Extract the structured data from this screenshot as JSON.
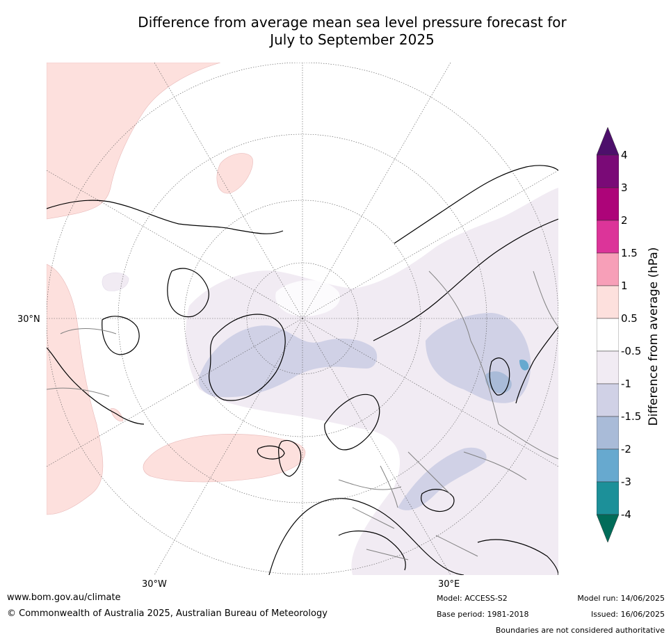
{
  "title": {
    "line1": "Difference from average mean sea level pressure forecast for",
    "line2": "July to September 2025"
  },
  "map": {
    "projection": "north-polar-stereographic",
    "graticule_labels": {
      "lat_30n": "30°N",
      "lon_30w": "30°W",
      "lon_30e": "30°E"
    },
    "land_outline_color": "#000000",
    "border_color": "#808080"
  },
  "colorbar": {
    "label": "Difference from average (hPa)",
    "ticks": [
      "4",
      "3",
      "2",
      "1.5",
      "1",
      "0.5",
      "-0.5",
      "-1",
      "-1.5",
      "-2",
      "-3",
      "-4"
    ],
    "colors": {
      "above_4": "#4d0f6b",
      "3_to_4": "#7a0a77",
      "2_to_3": "#ad0479",
      "1.5_to_2": "#dc3499",
      "1_to_1.5": "#f79fb8",
      "0.5_to_1": "#fde0dd",
      "neutral": "#ffffff",
      "-1_to_-0.5": "#f1ebf3",
      "-1.5_to_-1": "#d0d1e6",
      "-2_to_-1.5": "#a9bbd8",
      "-3_to_-2": "#67a9cf",
      "-4_to_-3": "#1c9099",
      "below_-4": "#016c59"
    }
  },
  "footer": {
    "website": "www.bom.gov.au/climate",
    "copyright": "© Commonwealth of Australia 2025, Australian Bureau of Meteorology",
    "model": "Model: ACCESS-S2",
    "base_period": "Base period: 1981-2018",
    "model_run": "Model run: 14/06/2025",
    "issued": "Issued: 16/06/2025",
    "disclaimer": "Boundaries are not considered authoritative"
  }
}
